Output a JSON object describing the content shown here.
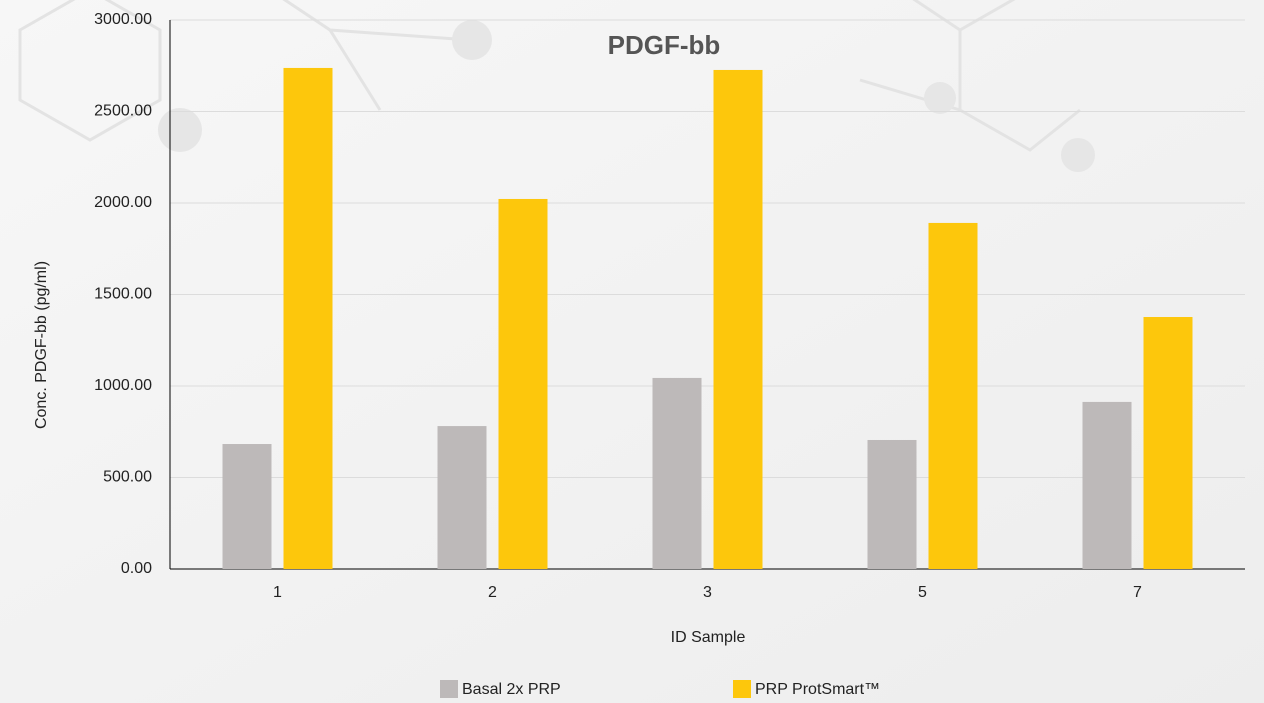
{
  "chart_data": {
    "type": "bar",
    "title": "PDGF-bb",
    "x_label": "ID Sample",
    "y_label": "Conc. PDGF-bb (pg/ml)",
    "categories": [
      "1",
      "2",
      "3",
      "5",
      "7"
    ],
    "series": [
      {
        "name": "Basal 2x PRP",
        "color": "#bdb9b9",
        "values": [
          683,
          781,
          1044,
          705,
          913
        ]
      },
      {
        "name": "PRP ProtSmart™",
        "color": "#fdc70c",
        "values": [
          2738,
          2022,
          2727,
          1891,
          1377
        ]
      }
    ],
    "ylim": [
      0,
      3000
    ],
    "yticks": [
      {
        "value": 0,
        "label": "0.00"
      },
      {
        "value": 500,
        "label": "500.00"
      },
      {
        "value": 1000,
        "label": "1000.00"
      },
      {
        "value": 1500,
        "label": "1500.00"
      },
      {
        "value": 2000,
        "label": "2000.00"
      },
      {
        "value": 2500,
        "label": "2500.00"
      },
      {
        "value": 3000,
        "label": "3000.00"
      }
    ],
    "grid": true,
    "legend": "bottom"
  }
}
